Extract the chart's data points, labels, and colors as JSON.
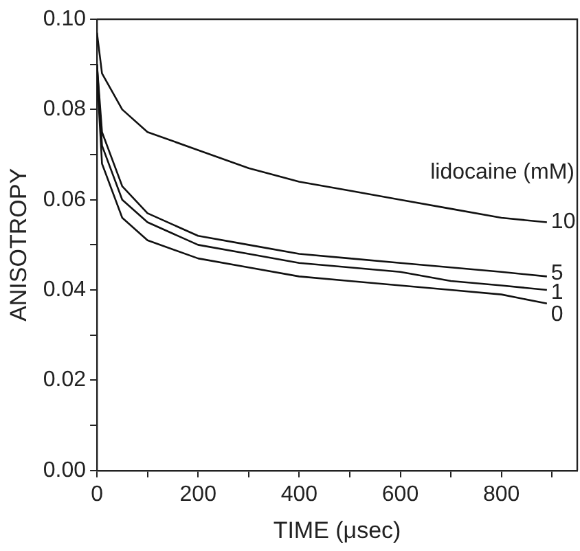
{
  "chart_data": {
    "type": "line",
    "xlabel": "TIME (μsec)",
    "ylabel": "ANISOTROPY",
    "legend_title": "lidocaine (mM)",
    "x": [
      0,
      10,
      50,
      100,
      200,
      300,
      400,
      500,
      600,
      700,
      800,
      890
    ],
    "series": [
      {
        "name": "10",
        "color": "#111111",
        "values": [
          0.097,
          0.088,
          0.08,
          0.075,
          0.071,
          0.067,
          0.064,
          0.062,
          0.06,
          0.058,
          0.056,
          0.055
        ]
      },
      {
        "name": "5",
        "color": "#111111",
        "values": [
          0.09,
          0.075,
          0.063,
          0.057,
          0.052,
          0.05,
          0.048,
          0.047,
          0.046,
          0.045,
          0.044,
          0.043
        ]
      },
      {
        "name": "1",
        "color": "#111111",
        "values": [
          0.09,
          0.072,
          0.06,
          0.055,
          0.05,
          0.048,
          0.046,
          0.045,
          0.044,
          0.042,
          0.041,
          0.04
        ]
      },
      {
        "name": "0",
        "color": "#111111",
        "values": [
          0.088,
          0.068,
          0.056,
          0.051,
          0.047,
          0.045,
          0.043,
          0.042,
          0.041,
          0.04,
          0.039,
          0.037
        ]
      }
    ],
    "xlim": [
      0,
      950
    ],
    "xticks": [
      0,
      {
        "value": 100,
        "label": null
      },
      200,
      {
        "value": 300,
        "label": null
      },
      400,
      {
        "value": 500,
        "label": null
      },
      600,
      {
        "value": 700,
        "label": null
      },
      800,
      {
        "value": 900,
        "label": null
      }
    ],
    "ylim": [
      0,
      0.1
    ],
    "yticks": [
      {
        "value": 0,
        "label": "0.00"
      },
      {
        "value": 0.01,
        "label": null
      },
      {
        "value": 0.02,
        "label": "0.02"
      },
      {
        "value": 0.03,
        "label": null
      },
      {
        "value": 0.04,
        "label": "0.04"
      },
      {
        "value": 0.05,
        "label": null
      },
      {
        "value": 0.06,
        "label": "0.06"
      },
      {
        "value": 0.07,
        "label": null
      },
      {
        "value": 0.08,
        "label": "0.08"
      },
      {
        "value": 0.09,
        "label": null
      },
      {
        "value": 0.1,
        "label": "0.10"
      }
    ],
    "grid": false,
    "legend": false,
    "marker": "none",
    "line_style": "solid"
  }
}
